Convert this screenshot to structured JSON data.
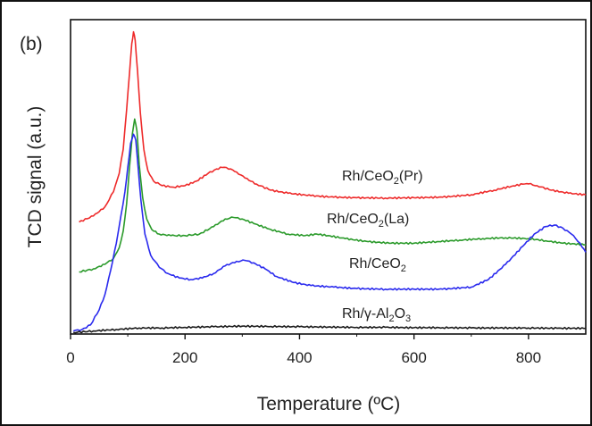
{
  "chart_data": {
    "type": "line",
    "panel_label": "(b)",
    "xlabel": "Temperature (ºC)",
    "ylabel": "TCD signal (a.u.)",
    "xlim": [
      0,
      900
    ],
    "x_ticks": [
      0,
      200,
      400,
      600,
      800
    ],
    "x_tick_labels": [
      "0",
      "200",
      "400",
      "600",
      "800"
    ],
    "y_units": "arbitrary units (0 = baseline of plot, 1 = top of frame)",
    "grid": false,
    "legend": "none (series labelled inline)",
    "series": [
      {
        "name": "Rh/CeO2(Pr)",
        "label_parts": [
          [
            "Rh/CeO",
            false
          ],
          [
            "2",
            true
          ],
          [
            "(Pr)",
            false
          ]
        ],
        "color": "#ee2a2a",
        "x": [
          15,
          40,
          60,
          75,
          85,
          92,
          98,
          103,
          107,
          110,
          113,
          117,
          122,
          128,
          135,
          145,
          160,
          180,
          200,
          220,
          240,
          255,
          265,
          272,
          280,
          290,
          305,
          325,
          350,
          380,
          420,
          460,
          500,
          550,
          600,
          650,
          700,
          740,
          770,
          790,
          800,
          815,
          840,
          870,
          900
        ],
        "y": [
          0.37,
          0.39,
          0.42,
          0.47,
          0.53,
          0.61,
          0.74,
          0.86,
          0.96,
          0.998,
          0.97,
          0.87,
          0.73,
          0.61,
          0.54,
          0.505,
          0.49,
          0.485,
          0.49,
          0.505,
          0.53,
          0.545,
          0.55,
          0.55,
          0.545,
          0.535,
          0.515,
          0.495,
          0.475,
          0.465,
          0.457,
          0.452,
          0.45,
          0.449,
          0.45,
          0.452,
          0.46,
          0.475,
          0.488,
          0.495,
          0.496,
          0.49,
          0.475,
          0.465,
          0.46
        ]
      },
      {
        "name": "Rh/CeO2(La)",
        "label_parts": [
          [
            "Rh/CeO",
            false
          ],
          [
            "2",
            true
          ],
          [
            "(La)",
            false
          ]
        ],
        "color": "#2a9a2a",
        "x": [
          15,
          40,
          60,
          75,
          85,
          92,
          98,
          103,
          108,
          112,
          116,
          120,
          126,
          133,
          142,
          155,
          175,
          200,
          225,
          250,
          270,
          285,
          300,
          320,
          350,
          380,
          410,
          430,
          450,
          480,
          520,
          560,
          600,
          640,
          680,
          720,
          760,
          800,
          830,
          860,
          900
        ],
        "y": [
          0.205,
          0.215,
          0.23,
          0.25,
          0.285,
          0.34,
          0.43,
          0.55,
          0.66,
          0.71,
          0.67,
          0.56,
          0.45,
          0.38,
          0.345,
          0.33,
          0.325,
          0.325,
          0.33,
          0.355,
          0.38,
          0.385,
          0.38,
          0.365,
          0.345,
          0.33,
          0.325,
          0.33,
          0.325,
          0.315,
          0.305,
          0.3,
          0.3,
          0.305,
          0.31,
          0.315,
          0.318,
          0.315,
          0.308,
          0.3,
          0.295
        ]
      },
      {
        "name": "Rh/CeO2",
        "label_parts": [
          [
            "Rh/CeO",
            false
          ],
          [
            "2",
            true
          ]
        ],
        "color": "#2a2aee",
        "x": [
          5,
          20,
          35,
          50,
          60,
          70,
          80,
          88,
          95,
          100,
          105,
          110,
          114,
          118,
          123,
          130,
          140,
          155,
          170,
          190,
          210,
          230,
          250,
          270,
          290,
          305,
          320,
          340,
          360,
          390,
          420,
          460,
          500,
          550,
          600,
          650,
          700,
          730,
          760,
          790,
          810,
          830,
          845,
          860,
          875,
          890,
          900
        ],
        "y": [
          0.01,
          0.015,
          0.03,
          0.08,
          0.13,
          0.21,
          0.3,
          0.39,
          0.47,
          0.55,
          0.63,
          0.66,
          0.64,
          0.55,
          0.44,
          0.33,
          0.26,
          0.22,
          0.2,
          0.185,
          0.18,
          0.185,
          0.2,
          0.225,
          0.24,
          0.243,
          0.235,
          0.215,
          0.19,
          0.17,
          0.16,
          0.155,
          0.15,
          0.148,
          0.148,
          0.148,
          0.155,
          0.18,
          0.23,
          0.29,
          0.33,
          0.355,
          0.36,
          0.35,
          0.33,
          0.3,
          0.27
        ]
      },
      {
        "name": "Rh/γ-Al2O3",
        "label_parts": [
          [
            "Rh/γ-Al",
            false
          ],
          [
            "2",
            true
          ],
          [
            "O",
            false
          ],
          [
            "3",
            true
          ]
        ],
        "color": "#1a1a1a",
        "x": [
          5,
          40,
          80,
          120,
          160,
          200,
          250,
          300,
          350,
          400,
          450,
          500,
          550,
          600,
          650,
          700,
          750,
          800,
          850,
          900
        ],
        "y": [
          0.005,
          0.01,
          0.015,
          0.02,
          0.02,
          0.022,
          0.024,
          0.026,
          0.025,
          0.024,
          0.023,
          0.022,
          0.022,
          0.021,
          0.021,
          0.02,
          0.02,
          0.02,
          0.019,
          0.019
        ]
      }
    ]
  }
}
